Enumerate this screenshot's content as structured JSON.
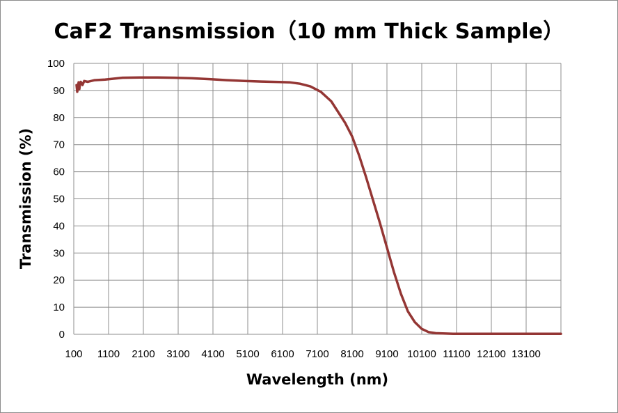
{
  "chart_data": {
    "type": "line",
    "title": "CaF2 Transmission（10 mm Thick Sample）",
    "xlabel": "Wavelength (nm)",
    "ylabel": "Transmission (%)",
    "xlim": [
      100,
      14100
    ],
    "ylim": [
      0,
      100
    ],
    "grid": true,
    "x_ticks": [
      "100",
      "1100",
      "2100",
      "3100",
      "4100",
      "5100",
      "6100",
      "7100",
      "8100",
      "9100",
      "10100",
      "11100",
      "12100",
      "13100"
    ],
    "y_ticks": [
      "0",
      "10",
      "20",
      "30",
      "40",
      "50",
      "60",
      "70",
      "80",
      "90",
      "100"
    ],
    "series": [
      {
        "color": "#943634",
        "x": [
          180,
          200,
          220,
          240,
          260,
          280,
          300,
          350,
          400,
          500,
          700,
          1000,
          1500,
          2000,
          2500,
          3000,
          3500,
          4000,
          4500,
          5000,
          5500,
          6000,
          6300,
          6600,
          6900,
          7200,
          7500,
          7700,
          7900,
          8100,
          8300,
          8500,
          8700,
          8900,
          9100,
          9300,
          9500,
          9700,
          9900,
          10100,
          10300,
          10500,
          10700,
          11000,
          11500,
          12000,
          13000,
          14100
        ],
        "y": [
          92.0,
          89.5,
          91.5,
          93.0,
          90.5,
          92.5,
          93.2,
          92.0,
          93.5,
          93.2,
          93.8,
          94.0,
          94.7,
          94.8,
          94.8,
          94.7,
          94.5,
          94.2,
          93.8,
          93.5,
          93.3,
          93.1,
          93.0,
          92.5,
          91.5,
          89.5,
          86.0,
          82.0,
          78.0,
          73.0,
          66.0,
          58.0,
          49.5,
          41.0,
          32.0,
          23.0,
          15.0,
          8.5,
          4.5,
          2.0,
          0.8,
          0.4,
          0.3,
          0.2,
          0.2,
          0.2,
          0.2,
          0.2
        ]
      }
    ]
  }
}
